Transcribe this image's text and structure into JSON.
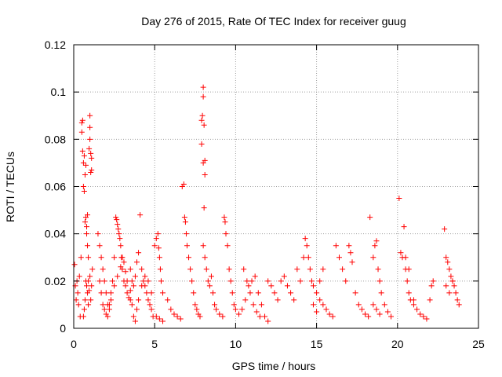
{
  "chart_data": {
    "type": "scatter",
    "title": "Day 276 of 2015, Rate Of TEC Index for receiver guug",
    "xlabel": "GPS time / hours",
    "ylabel": "ROTI / TECUs",
    "xlim": [
      0,
      25
    ],
    "ylim": [
      0,
      0.12
    ],
    "x_ticks": [
      0,
      5,
      10,
      15,
      20,
      25
    ],
    "x_tick_labels": [
      "0",
      "5",
      "10",
      "15",
      "20",
      "25"
    ],
    "y_ticks": [
      0,
      0.02,
      0.04,
      0.06,
      0.08,
      0.1,
      0.12
    ],
    "y_tick_labels": [
      "0",
      "0.02",
      "0.04",
      "0.06",
      "0.08",
      "0.1",
      "0.12"
    ],
    "grid": true,
    "marker": "+",
    "marker_color": "#ff0000",
    "series": [
      {
        "name": "ROTI",
        "points": [
          [
            0.05,
            0.027
          ],
          [
            0.1,
            0.018
          ],
          [
            0.15,
            0.012
          ],
          [
            0.2,
            0.02
          ],
          [
            0.25,
            0.015
          ],
          [
            0.3,
            0.01
          ],
          [
            0.35,
            0.022
          ],
          [
            0.4,
            0.005
          ],
          [
            0.45,
            0.03
          ],
          [
            0.5,
            0.087
          ],
          [
            0.5,
            0.083
          ],
          [
            0.55,
            0.088
          ],
          [
            0.55,
            0.075
          ],
          [
            0.6,
            0.07
          ],
          [
            0.6,
            0.06
          ],
          [
            0.65,
            0.058
          ],
          [
            0.65,
            0.073
          ],
          [
            0.7,
            0.045
          ],
          [
            0.7,
            0.065
          ],
          [
            0.75,
            0.069
          ],
          [
            0.75,
            0.047
          ],
          [
            0.8,
            0.043
          ],
          [
            0.8,
            0.04
          ],
          [
            0.85,
            0.035
          ],
          [
            0.85,
            0.048
          ],
          [
            0.9,
            0.03
          ],
          [
            0.9,
            0.02
          ],
          [
            0.95,
            0.076
          ],
          [
            1.0,
            0.09
          ],
          [
            1.0,
            0.085
          ],
          [
            1.0,
            0.08
          ],
          [
            1.05,
            0.074
          ],
          [
            1.05,
            0.066
          ],
          [
            1.1,
            0.072
          ],
          [
            1.1,
            0.067
          ],
          [
            0.6,
            0.005
          ],
          [
            0.65,
            0.008
          ],
          [
            0.7,
            0.012
          ],
          [
            0.75,
            0.02
          ],
          [
            0.8,
            0.018
          ],
          [
            0.85,
            0.015
          ],
          [
            0.9,
            0.01
          ],
          [
            0.95,
            0.016
          ],
          [
            1.0,
            0.022
          ],
          [
            1.05,
            0.012
          ],
          [
            1.1,
            0.018
          ],
          [
            1.15,
            0.025
          ],
          [
            1.5,
            0.04
          ],
          [
            1.6,
            0.035
          ],
          [
            1.7,
            0.03
          ],
          [
            1.8,
            0.025
          ],
          [
            1.9,
            0.02
          ],
          [
            2.0,
            0.015
          ],
          [
            2.1,
            0.01
          ],
          [
            2.2,
            0.008
          ],
          [
            2.3,
            0.012
          ],
          [
            2.4,
            0.02
          ],
          [
            2.5,
            0.03
          ],
          [
            2.6,
            0.047
          ],
          [
            2.65,
            0.046
          ],
          [
            2.7,
            0.044
          ],
          [
            2.75,
            0.042
          ],
          [
            2.8,
            0.04
          ],
          [
            2.85,
            0.038
          ],
          [
            2.9,
            0.035
          ],
          [
            2.95,
            0.03
          ],
          [
            3.0,
            0.025
          ],
          [
            3.1,
            0.02
          ],
          [
            3.2,
            0.018
          ],
          [
            3.3,
            0.015
          ],
          [
            3.4,
            0.013
          ],
          [
            3.5,
            0.012
          ],
          [
            1.6,
            0.02
          ],
          [
            1.7,
            0.015
          ],
          [
            1.8,
            0.01
          ],
          [
            1.9,
            0.008
          ],
          [
            2.0,
            0.006
          ],
          [
            2.1,
            0.005
          ],
          [
            2.2,
            0.01
          ],
          [
            2.3,
            0.015
          ],
          [
            2.5,
            0.018
          ],
          [
            2.7,
            0.022
          ],
          [
            2.9,
            0.026
          ],
          [
            3.0,
            0.03
          ],
          [
            3.1,
            0.028
          ],
          [
            3.2,
            0.024
          ],
          [
            3.3,
            0.02
          ],
          [
            3.5,
            0.016
          ],
          [
            3.6,
            0.01
          ],
          [
            3.7,
            0.005
          ],
          [
            3.8,
            0.003
          ],
          [
            3.9,
            0.008
          ],
          [
            3.5,
            0.025
          ],
          [
            3.6,
            0.02
          ],
          [
            3.7,
            0.018
          ],
          [
            3.8,
            0.022
          ],
          [
            3.9,
            0.028
          ],
          [
            4.0,
            0.032
          ],
          [
            4.1,
            0.048
          ],
          [
            4.2,
            0.025
          ],
          [
            4.3,
            0.02
          ],
          [
            4.4,
            0.018
          ],
          [
            4.5,
            0.015
          ],
          [
            4.6,
            0.012
          ],
          [
            4.7,
            0.01
          ],
          [
            4.8,
            0.008
          ],
          [
            4.9,
            0.005
          ],
          [
            4.0,
            0.012
          ],
          [
            4.2,
            0.018
          ],
          [
            4.4,
            0.022
          ],
          [
            4.6,
            0.02
          ],
          [
            4.8,
            0.015
          ],
          [
            5.0,
            0.035
          ],
          [
            5.1,
            0.038
          ],
          [
            5.2,
            0.04
          ],
          [
            5.25,
            0.034
          ],
          [
            5.3,
            0.03
          ],
          [
            5.35,
            0.025
          ],
          [
            5.4,
            0.02
          ],
          [
            5.5,
            0.015
          ],
          [
            5.1,
            0.005
          ],
          [
            5.3,
            0.004
          ],
          [
            5.5,
            0.003
          ],
          [
            5.8,
            0.012
          ],
          [
            6.0,
            0.008
          ],
          [
            6.2,
            0.006
          ],
          [
            6.4,
            0.005
          ],
          [
            6.6,
            0.004
          ],
          [
            6.7,
            0.06
          ],
          [
            6.8,
            0.061
          ],
          [
            6.85,
            0.047
          ],
          [
            6.9,
            0.045
          ],
          [
            6.95,
            0.04
          ],
          [
            7.0,
            0.035
          ],
          [
            7.1,
            0.03
          ],
          [
            7.2,
            0.025
          ],
          [
            7.3,
            0.02
          ],
          [
            7.4,
            0.015
          ],
          [
            7.5,
            0.01
          ],
          [
            7.6,
            0.008
          ],
          [
            7.7,
            0.006
          ],
          [
            7.8,
            0.005
          ],
          [
            7.9,
            0.088
          ],
          [
            7.95,
            0.09
          ],
          [
            8.0,
            0.102
          ],
          [
            8.0,
            0.098
          ],
          [
            8.05,
            0.086
          ],
          [
            8.1,
            0.071
          ],
          [
            8.1,
            0.065
          ],
          [
            8.05,
            0.051
          ],
          [
            7.9,
            0.078
          ],
          [
            8.0,
            0.07
          ],
          [
            8.0,
            0.035
          ],
          [
            8.1,
            0.03
          ],
          [
            8.2,
            0.025
          ],
          [
            8.3,
            0.02
          ],
          [
            8.4,
            0.018
          ],
          [
            8.5,
            0.022
          ],
          [
            8.6,
            0.015
          ],
          [
            8.7,
            0.01
          ],
          [
            8.8,
            0.008
          ],
          [
            9.0,
            0.006
          ],
          [
            9.2,
            0.005
          ],
          [
            9.3,
            0.047
          ],
          [
            9.35,
            0.045
          ],
          [
            9.4,
            0.04
          ],
          [
            9.5,
            0.035
          ],
          [
            9.6,
            0.025
          ],
          [
            9.7,
            0.02
          ],
          [
            9.8,
            0.015
          ],
          [
            9.9,
            0.01
          ],
          [
            10.0,
            0.008
          ],
          [
            10.2,
            0.006
          ],
          [
            10.4,
            0.008
          ],
          [
            10.6,
            0.012
          ],
          [
            10.8,
            0.018
          ],
          [
            11.0,
            0.02
          ],
          [
            11.2,
            0.022
          ],
          [
            11.4,
            0.015
          ],
          [
            11.6,
            0.01
          ],
          [
            11.8,
            0.005
          ],
          [
            12.0,
            0.003
          ],
          [
            10.5,
            0.025
          ],
          [
            10.7,
            0.02
          ],
          [
            10.9,
            0.015
          ],
          [
            11.1,
            0.01
          ],
          [
            11.3,
            0.007
          ],
          [
            11.5,
            0.005
          ],
          [
            12.0,
            0.02
          ],
          [
            12.2,
            0.018
          ],
          [
            12.4,
            0.015
          ],
          [
            12.6,
            0.012
          ],
          [
            12.8,
            0.02
          ],
          [
            13.0,
            0.022
          ],
          [
            13.2,
            0.018
          ],
          [
            13.4,
            0.015
          ],
          [
            13.6,
            0.012
          ],
          [
            13.8,
            0.025
          ],
          [
            14.0,
            0.02
          ],
          [
            14.2,
            0.03
          ],
          [
            14.3,
            0.038
          ],
          [
            14.4,
            0.035
          ],
          [
            14.5,
            0.03
          ],
          [
            14.6,
            0.025
          ],
          [
            14.7,
            0.02
          ],
          [
            14.8,
            0.018
          ],
          [
            15.0,
            0.015
          ],
          [
            15.2,
            0.012
          ],
          [
            15.4,
            0.01
          ],
          [
            15.6,
            0.008
          ],
          [
            15.8,
            0.006
          ],
          [
            16.0,
            0.005
          ],
          [
            14.8,
            0.01
          ],
          [
            15.0,
            0.007
          ],
          [
            15.2,
            0.02
          ],
          [
            15.4,
            0.025
          ],
          [
            16.2,
            0.035
          ],
          [
            16.4,
            0.03
          ],
          [
            16.6,
            0.025
          ],
          [
            16.8,
            0.02
          ],
          [
            17.0,
            0.035
          ],
          [
            17.1,
            0.032
          ],
          [
            17.2,
            0.028
          ],
          [
            17.4,
            0.015
          ],
          [
            17.6,
            0.01
          ],
          [
            17.8,
            0.008
          ],
          [
            18.0,
            0.006
          ],
          [
            18.2,
            0.005
          ],
          [
            18.3,
            0.047
          ],
          [
            18.5,
            0.03
          ],
          [
            18.6,
            0.035
          ],
          [
            18.7,
            0.037
          ],
          [
            18.8,
            0.025
          ],
          [
            18.9,
            0.02
          ],
          [
            19.0,
            0.015
          ],
          [
            19.2,
            0.01
          ],
          [
            19.4,
            0.007
          ],
          [
            19.6,
            0.005
          ],
          [
            18.5,
            0.01
          ],
          [
            18.7,
            0.008
          ],
          [
            18.9,
            0.006
          ],
          [
            20.1,
            0.055
          ],
          [
            20.2,
            0.032
          ],
          [
            20.3,
            0.03
          ],
          [
            20.4,
            0.043
          ],
          [
            20.5,
            0.025
          ],
          [
            20.6,
            0.02
          ],
          [
            20.7,
            0.015
          ],
          [
            20.8,
            0.012
          ],
          [
            21.0,
            0.01
          ],
          [
            21.2,
            0.008
          ],
          [
            21.4,
            0.006
          ],
          [
            21.6,
            0.005
          ],
          [
            21.8,
            0.004
          ],
          [
            22.0,
            0.012
          ],
          [
            22.1,
            0.018
          ],
          [
            22.2,
            0.02
          ],
          [
            20.5,
            0.03
          ],
          [
            20.7,
            0.025
          ],
          [
            21.0,
            0.012
          ],
          [
            22.9,
            0.042
          ],
          [
            23.0,
            0.03
          ],
          [
            23.1,
            0.028
          ],
          [
            23.2,
            0.025
          ],
          [
            23.3,
            0.022
          ],
          [
            23.4,
            0.02
          ],
          [
            23.5,
            0.018
          ],
          [
            23.6,
            0.015
          ],
          [
            23.7,
            0.012
          ],
          [
            23.8,
            0.01
          ],
          [
            23.0,
            0.018
          ],
          [
            23.2,
            0.015
          ],
          [
            23.4,
            0.02
          ]
        ]
      }
    ]
  }
}
